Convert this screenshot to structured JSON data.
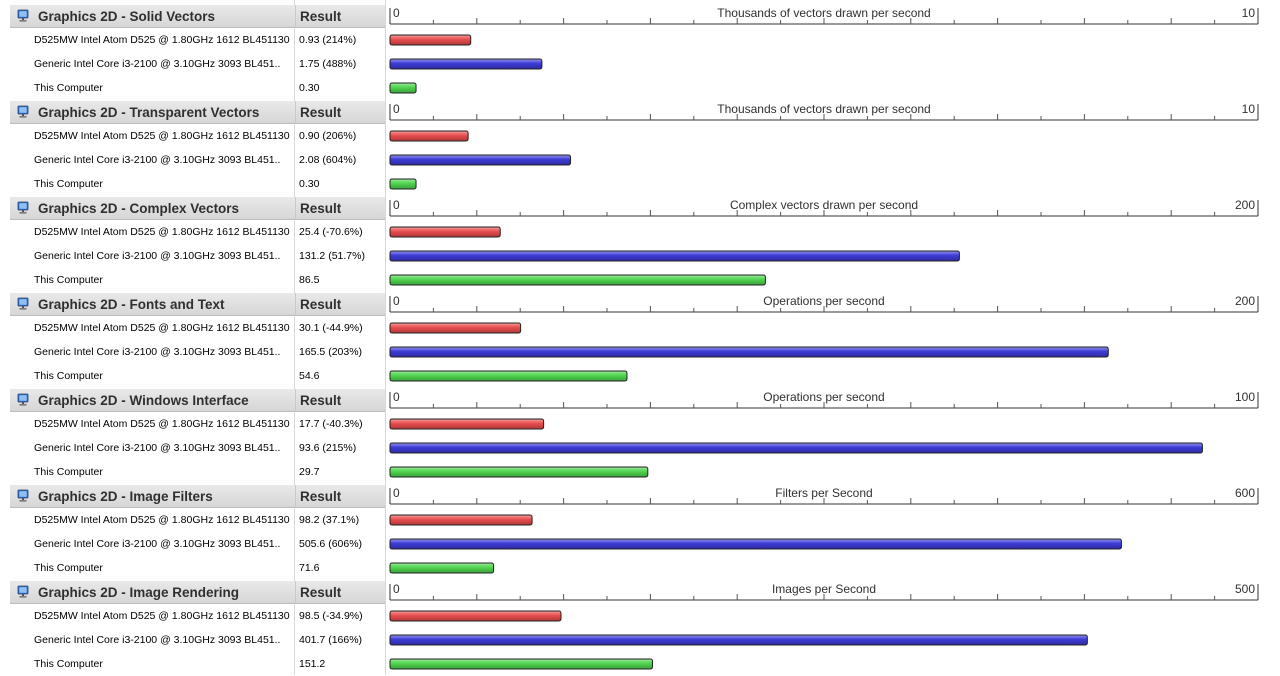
{
  "header_label": "Result",
  "colors": {
    "reference": "#e84c4c",
    "competitor": "#3b3bd6",
    "this_computer": "#4ed44e"
  },
  "sections": [
    {
      "title": "Graphics 2D - Solid Vectors",
      "unit": "Thousands of vectors drawn per second",
      "axis_min": "0",
      "axis_max": "10",
      "max": 10,
      "rows": [
        {
          "name": "D525MW Intel Atom D525 @ 1.80GHz 1612 BL451130",
          "result": "0.93 (214%)",
          "value": 0.93,
          "kind": "reference"
        },
        {
          "name": "Generic Intel Core i3-2100 @ 3.10GHz 3093 BL451..",
          "result": "1.75 (488%)",
          "value": 1.75,
          "kind": "competitor"
        },
        {
          "name": "This Computer",
          "result": "0.30",
          "value": 0.3,
          "kind": "this_computer"
        }
      ]
    },
    {
      "title": "Graphics 2D - Transparent Vectors",
      "unit": "Thousands of vectors drawn per second",
      "axis_min": "0",
      "axis_max": "10",
      "max": 10,
      "rows": [
        {
          "name": "D525MW Intel Atom D525 @ 1.80GHz 1612 BL451130",
          "result": "0.90 (206%)",
          "value": 0.9,
          "kind": "reference"
        },
        {
          "name": "Generic Intel Core i3-2100 @ 3.10GHz 3093 BL451..",
          "result": "2.08 (604%)",
          "value": 2.08,
          "kind": "competitor"
        },
        {
          "name": "This Computer",
          "result": "0.30",
          "value": 0.3,
          "kind": "this_computer"
        }
      ]
    },
    {
      "title": "Graphics 2D - Complex Vectors",
      "unit": "Complex vectors drawn per second",
      "axis_min": "0",
      "axis_max": "200",
      "max": 200,
      "rows": [
        {
          "name": "D525MW Intel Atom D525 @ 1.80GHz 1612 BL451130",
          "result": "25.4 (-70.6%)",
          "value": 25.4,
          "kind": "reference"
        },
        {
          "name": "Generic Intel Core i3-2100 @ 3.10GHz 3093 BL451..",
          "result": "131.2 (51.7%)",
          "value": 131.2,
          "kind": "competitor"
        },
        {
          "name": "This Computer",
          "result": "86.5",
          "value": 86.5,
          "kind": "this_computer"
        }
      ]
    },
    {
      "title": "Graphics 2D - Fonts and Text",
      "unit": "Operations per second",
      "axis_min": "0",
      "axis_max": "200",
      "max": 200,
      "rows": [
        {
          "name": "D525MW Intel Atom D525 @ 1.80GHz 1612 BL451130",
          "result": "30.1 (-44.9%)",
          "value": 30.1,
          "kind": "reference"
        },
        {
          "name": "Generic Intel Core i3-2100 @ 3.10GHz 3093 BL451..",
          "result": "165.5 (203%)",
          "value": 165.5,
          "kind": "competitor"
        },
        {
          "name": "This Computer",
          "result": "54.6",
          "value": 54.6,
          "kind": "this_computer"
        }
      ]
    },
    {
      "title": "Graphics 2D - Windows Interface",
      "unit": "Operations per second",
      "axis_min": "0",
      "axis_max": "100",
      "max": 100,
      "rows": [
        {
          "name": "D525MW Intel Atom D525 @ 1.80GHz 1612 BL451130",
          "result": "17.7 (-40.3%)",
          "value": 17.7,
          "kind": "reference"
        },
        {
          "name": "Generic Intel Core i3-2100 @ 3.10GHz 3093 BL451..",
          "result": "93.6 (215%)",
          "value": 93.6,
          "kind": "competitor"
        },
        {
          "name": "This Computer",
          "result": "29.7",
          "value": 29.7,
          "kind": "this_computer"
        }
      ]
    },
    {
      "title": "Graphics 2D - Image Filters",
      "unit": "Filters per Second",
      "axis_min": "0",
      "axis_max": "600",
      "max": 600,
      "rows": [
        {
          "name": "D525MW Intel Atom D525 @ 1.80GHz 1612 BL451130",
          "result": "98.2 (37.1%)",
          "value": 98.2,
          "kind": "reference"
        },
        {
          "name": "Generic Intel Core i3-2100 @ 3.10GHz 3093 BL451..",
          "result": "505.6 (606%)",
          "value": 505.6,
          "kind": "competitor"
        },
        {
          "name": "This Computer",
          "result": "71.6",
          "value": 71.6,
          "kind": "this_computer"
        }
      ]
    },
    {
      "title": "Graphics 2D - Image Rendering",
      "unit": "Images per Second",
      "axis_min": "0",
      "axis_max": "500",
      "max": 500,
      "rows": [
        {
          "name": "D525MW Intel Atom D525 @ 1.80GHz 1612 BL451130",
          "result": "98.5 (-34.9%)",
          "value": 98.5,
          "kind": "reference"
        },
        {
          "name": "Generic Intel Core i3-2100 @ 3.10GHz 3093 BL451..",
          "result": "401.7 (166%)",
          "value": 401.7,
          "kind": "competitor"
        },
        {
          "name": "This Computer",
          "result": "151.2",
          "value": 151.2,
          "kind": "this_computer"
        }
      ]
    }
  ]
}
